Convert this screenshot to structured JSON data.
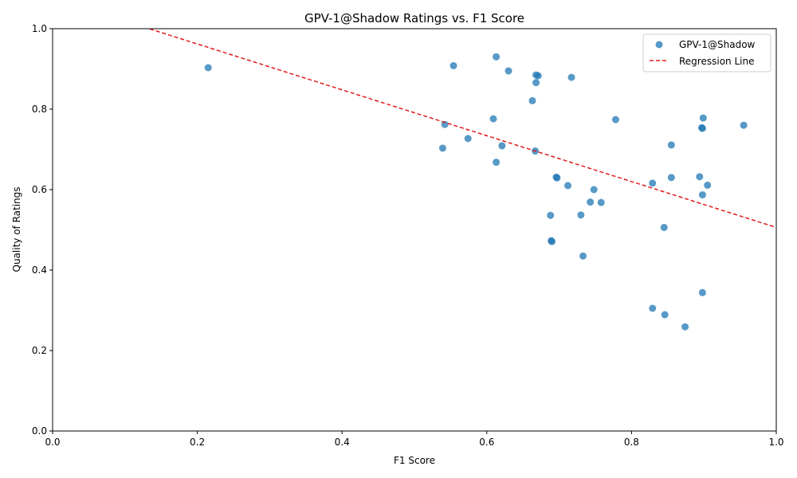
{
  "chart_data": {
    "type": "scatter",
    "title": "GPV-1@Shadow Ratings vs. F1 Score",
    "xlabel": "F1 Score",
    "ylabel": "Quality of Ratings",
    "xlim": [
      0,
      1
    ],
    "ylim": [
      0,
      1
    ],
    "x_ticks": [
      "0.0",
      "0.2",
      "0.4",
      "0.6",
      "0.8",
      "1.0"
    ],
    "y_ticks": [
      "0.0",
      "0.2",
      "0.4",
      "0.6",
      "0.8",
      "1.0"
    ],
    "grid": false,
    "legend_position": "top-right",
    "legend": {
      "scatter_label": "GPV-1@Shadow",
      "line_label": "Regression Line"
    },
    "colors": {
      "points": "#1f77b4",
      "regression": "#e41a1c"
    },
    "series": [
      {
        "name": "GPV-1@Shadow",
        "points": [
          [
            0.215,
            0.903
          ],
          [
            0.554,
            0.908
          ],
          [
            0.613,
            0.93
          ],
          [
            0.63,
            0.895
          ],
          [
            0.668,
            0.885
          ],
          [
            0.671,
            0.883
          ],
          [
            0.717,
            0.879
          ],
          [
            0.668,
            0.866
          ],
          [
            0.663,
            0.821
          ],
          [
            0.609,
            0.776
          ],
          [
            0.542,
            0.762
          ],
          [
            0.574,
            0.727
          ],
          [
            0.621,
            0.709
          ],
          [
            0.539,
            0.703
          ],
          [
            0.667,
            0.696
          ],
          [
            0.613,
            0.668
          ],
          [
            0.778,
            0.774
          ],
          [
            0.899,
            0.778
          ],
          [
            0.897,
            0.754
          ],
          [
            0.898,
            0.752
          ],
          [
            0.955,
            0.76
          ],
          [
            0.855,
            0.711
          ],
          [
            0.696,
            0.631
          ],
          [
            0.697,
            0.629
          ],
          [
            0.712,
            0.61
          ],
          [
            0.748,
            0.6
          ],
          [
            0.743,
            0.569
          ],
          [
            0.758,
            0.568
          ],
          [
            0.829,
            0.616
          ],
          [
            0.855,
            0.63
          ],
          [
            0.894,
            0.632
          ],
          [
            0.905,
            0.611
          ],
          [
            0.898,
            0.587
          ],
          [
            0.688,
            0.536
          ],
          [
            0.73,
            0.537
          ],
          [
            0.845,
            0.506
          ],
          [
            0.689,
            0.473
          ],
          [
            0.69,
            0.471
          ],
          [
            0.733,
            0.435
          ],
          [
            0.898,
            0.344
          ],
          [
            0.829,
            0.305
          ],
          [
            0.846,
            0.289
          ],
          [
            0.874,
            0.259
          ]
        ]
      }
    ],
    "regression_line": {
      "name": "Regression Line",
      "slope": -0.57,
      "intercept": 1.076
    }
  }
}
